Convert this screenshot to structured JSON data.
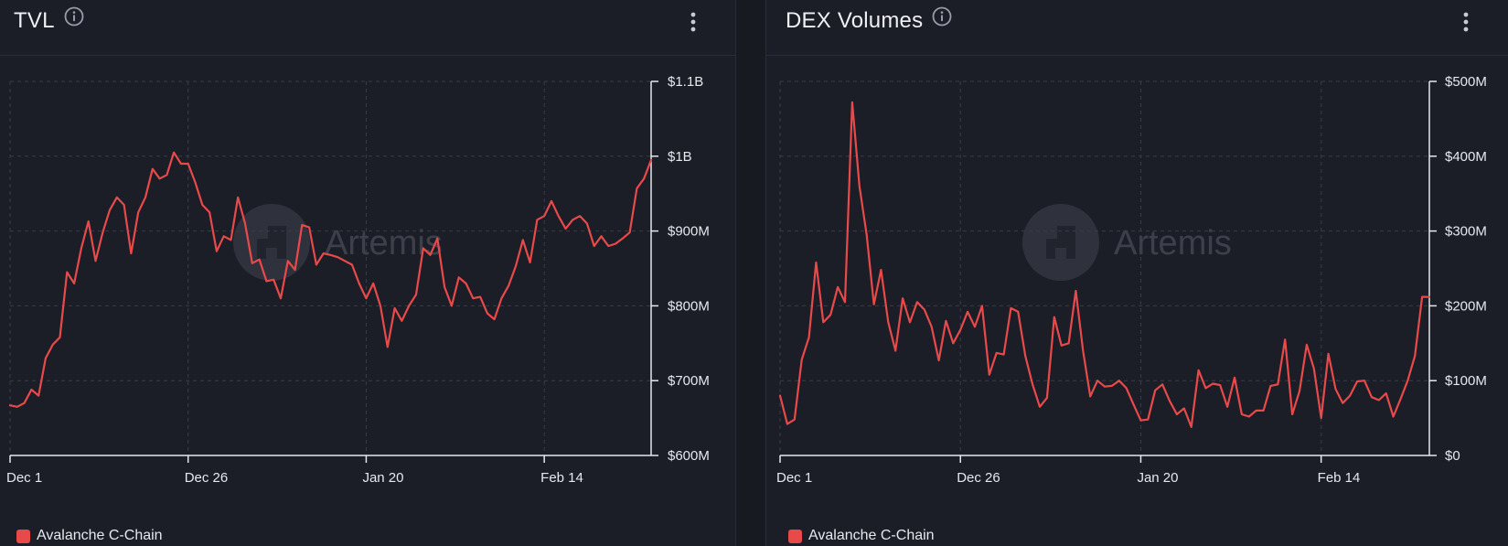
{
  "colors": {
    "series": "#e84a4a",
    "grid": "#3a3d48",
    "axis": "#e6e8ee",
    "background": "#1b1d27"
  },
  "icons": {
    "info": "info-icon",
    "menu": "kebab-menu-icon",
    "watermark": "artemis-logo-icon"
  },
  "watermark": "Artemis",
  "chart_data": [
    {
      "type": "line",
      "title": "TVL",
      "xlabel": "",
      "ylabel": "",
      "legend": {
        "placement": "bottom-left",
        "entries": [
          "Avalanche C-Chain"
        ]
      },
      "grid": true,
      "x_ticks": [
        {
          "label": "Dec 1",
          "day": 0
        },
        {
          "label": "Dec 26",
          "day": 25
        },
        {
          "label": "Jan 20",
          "day": 50
        },
        {
          "label": "Feb 14",
          "day": 75
        }
      ],
      "x_range_days": [
        0,
        90
      ],
      "y_ticks": [
        {
          "label": "$600M",
          "value": 600
        },
        {
          "label": "$700M",
          "value": 700
        },
        {
          "label": "$800M",
          "value": 800
        },
        {
          "label": "$900M",
          "value": 900
        },
        {
          "label": "$1B",
          "value": 1000
        },
        {
          "label": "$1.1B",
          "value": 1100
        }
      ],
      "ylim": [
        600,
        1100
      ],
      "y_unit": "M USD",
      "series": [
        {
          "name": "Avalanche C-Chain",
          "days": [
            0,
            1,
            2,
            3,
            4,
            5,
            6,
            7,
            8,
            9,
            10,
            11,
            12,
            13,
            14,
            15,
            16,
            17,
            18,
            19,
            20,
            21,
            22,
            23,
            24,
            25,
            26,
            27,
            28,
            29,
            30,
            31,
            32,
            33,
            34,
            35,
            36,
            37,
            38,
            39,
            40,
            41,
            42,
            43,
            44,
            45,
            46,
            47,
            48,
            49,
            50,
            51,
            52,
            53,
            54,
            55,
            56,
            57,
            58,
            59,
            60,
            61,
            62,
            63,
            64,
            65,
            66,
            67,
            68,
            69,
            70,
            71,
            72,
            73,
            74,
            75,
            76,
            77,
            78,
            79,
            80,
            81,
            82,
            83,
            84,
            85,
            86,
            87,
            88,
            89,
            90
          ],
          "values": [
            667,
            665,
            670,
            688,
            680,
            730,
            748,
            758,
            845,
            830,
            877,
            913,
            860,
            898,
            928,
            945,
            935,
            870,
            925,
            945,
            983,
            970,
            975,
            1005,
            990,
            990,
            965,
            935,
            925,
            873,
            893,
            888,
            945,
            910,
            857,
            862,
            833,
            835,
            810,
            860,
            848,
            908,
            905,
            855,
            870,
            868,
            865,
            860,
            855,
            830,
            810,
            830,
            800,
            745,
            797,
            780,
            800,
            815,
            877,
            868,
            890,
            825,
            800,
            838,
            830,
            810,
            812,
            790,
            782,
            810,
            827,
            853,
            888,
            858,
            915,
            920,
            940,
            920,
            903,
            915,
            920,
            910,
            880,
            893,
            880,
            883,
            890,
            898,
            957,
            970,
            995
          ]
        }
      ]
    },
    {
      "type": "line",
      "title": "DEX Volumes",
      "xlabel": "",
      "ylabel": "",
      "legend": {
        "placement": "bottom-left",
        "entries": [
          "Avalanche C-Chain"
        ]
      },
      "grid": true,
      "x_ticks": [
        {
          "label": "Dec 1",
          "day": 0
        },
        {
          "label": "Dec 26",
          "day": 25
        },
        {
          "label": "Jan 20",
          "day": 50
        },
        {
          "label": "Feb 14",
          "day": 75
        }
      ],
      "x_range_days": [
        0,
        90
      ],
      "y_ticks": [
        {
          "label": "$0",
          "value": 0
        },
        {
          "label": "$100M",
          "value": 100
        },
        {
          "label": "$200M",
          "value": 200
        },
        {
          "label": "$300M",
          "value": 300
        },
        {
          "label": "$400M",
          "value": 400
        },
        {
          "label": "$500M",
          "value": 500
        }
      ],
      "ylim": [
        0,
        500
      ],
      "y_unit": "M USD",
      "series": [
        {
          "name": "Avalanche C-Chain",
          "days": [
            0,
            1,
            2,
            3,
            4,
            5,
            6,
            7,
            8,
            9,
            10,
            11,
            12,
            13,
            14,
            15,
            16,
            17,
            18,
            19,
            20,
            21,
            22,
            23,
            24,
            25,
            26,
            27,
            28,
            29,
            30,
            31,
            32,
            33,
            34,
            35,
            36,
            37,
            38,
            39,
            40,
            41,
            42,
            43,
            44,
            45,
            46,
            47,
            48,
            49,
            50,
            51,
            52,
            53,
            54,
            55,
            56,
            57,
            58,
            59,
            60,
            61,
            62,
            63,
            64,
            65,
            66,
            67,
            68,
            69,
            70,
            71,
            72,
            73,
            74,
            75,
            76,
            77,
            78,
            79,
            80,
            81,
            82,
            83,
            84,
            85,
            86,
            87,
            88,
            89,
            90
          ],
          "values": [
            80,
            42,
            48,
            128,
            158,
            258,
            178,
            188,
            225,
            205,
            472,
            360,
            295,
            202,
            248,
            178,
            140,
            210,
            178,
            205,
            195,
            172,
            127,
            180,
            150,
            168,
            192,
            172,
            200,
            108,
            137,
            135,
            197,
            192,
            133,
            95,
            65,
            77,
            185,
            147,
            150,
            220,
            140,
            79,
            100,
            92,
            93,
            100,
            90,
            68,
            47,
            48,
            87,
            95,
            73,
            55,
            63,
            38,
            114,
            90,
            96,
            94,
            65,
            104,
            55,
            52,
            60,
            60,
            93,
            95,
            155,
            55,
            86,
            148,
            116,
            50,
            136,
            89,
            70,
            80,
            99,
            100,
            78,
            74,
            83,
            52,
            75,
            100,
            133,
            212,
            212
          ]
        }
      ]
    }
  ]
}
